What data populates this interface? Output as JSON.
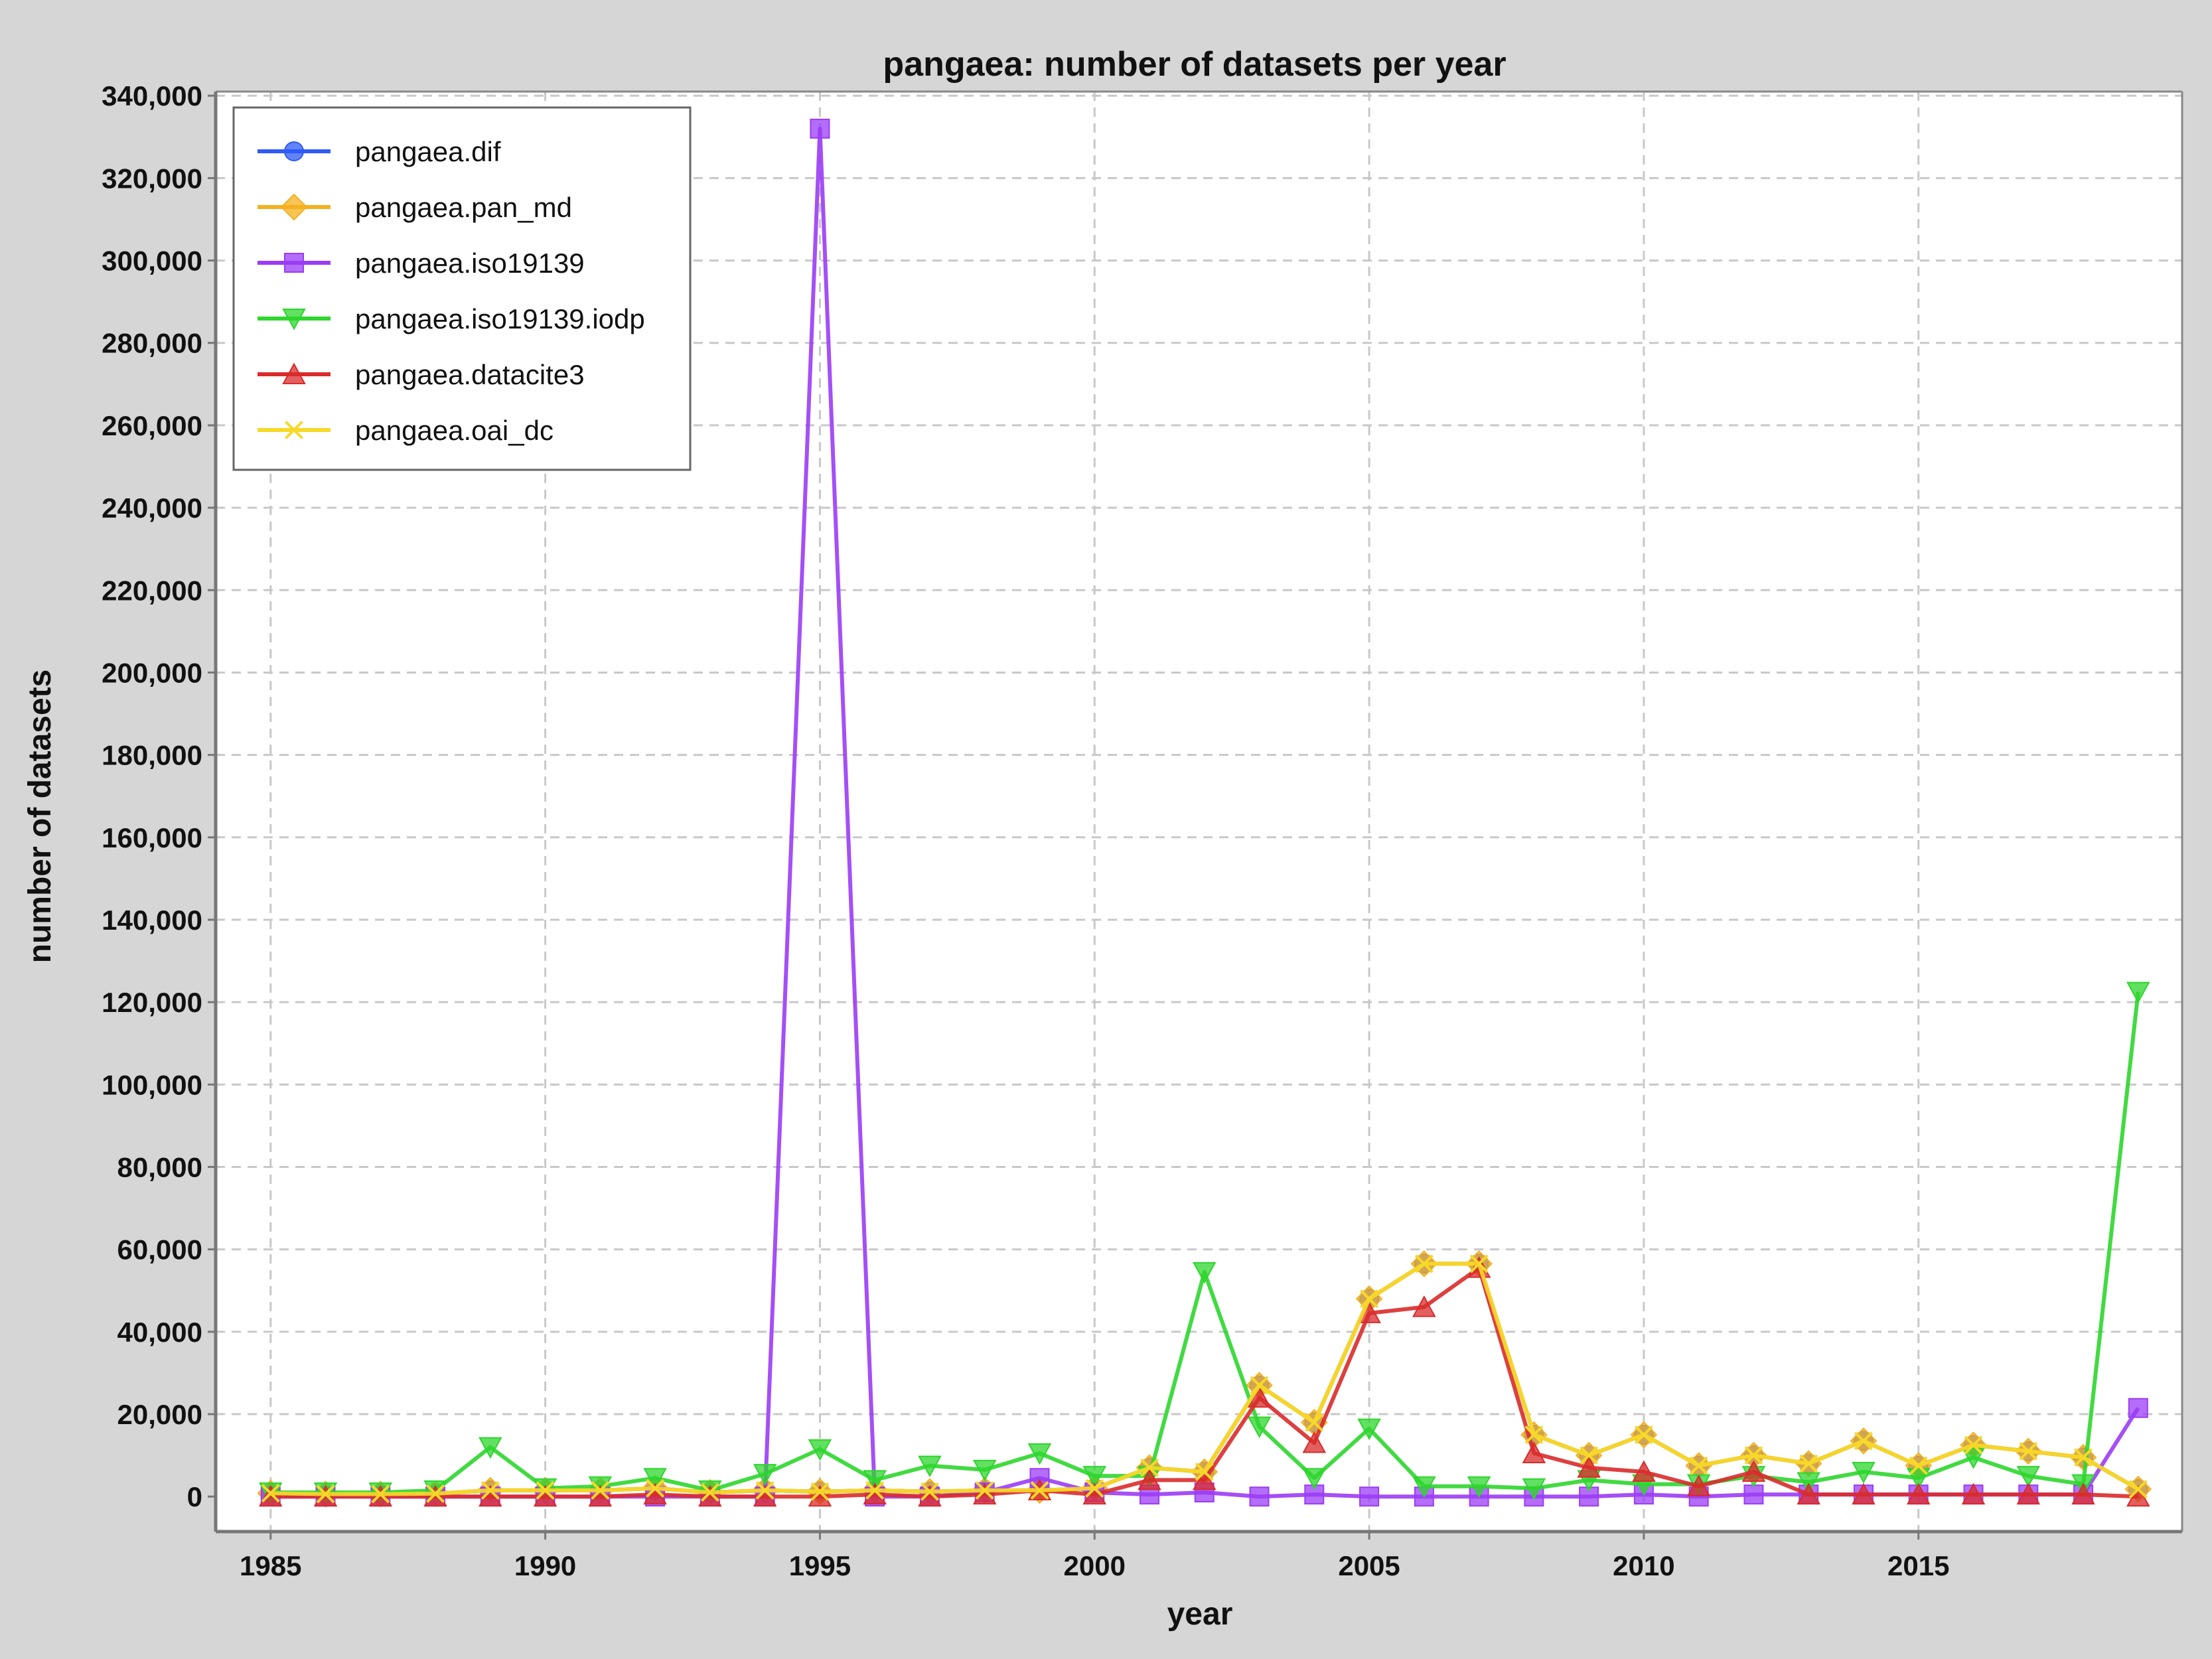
{
  "chart_data": {
    "type": "line",
    "title": "pangaea: number of datasets per year",
    "xlabel": "year",
    "ylabel": "number of datasets",
    "xlim": [
      1984,
      2019.8
    ],
    "ylim": [
      -8500,
      341000
    ],
    "x_ticks": [
      1985,
      1990,
      1995,
      2000,
      2005,
      2010,
      2015
    ],
    "y_ticks": [
      0,
      20000,
      40000,
      60000,
      80000,
      100000,
      120000,
      140000,
      160000,
      180000,
      200000,
      220000,
      240000,
      260000,
      280000,
      300000,
      320000,
      340000
    ],
    "y_tick_labels": [
      "0",
      "20,000",
      "40,000",
      "60,000",
      "80,000",
      "100,000",
      "120,000",
      "140,000",
      "160,000",
      "180,000",
      "200,000",
      "220,000",
      "240,000",
      "260,000",
      "280,000",
      "300,000",
      "320,000",
      "340,000"
    ],
    "grid": true,
    "legend_position": "top-left",
    "x": [
      1985,
      1986,
      1987,
      1988,
      1989,
      1990,
      1991,
      1992,
      1993,
      1994,
      1995,
      1996,
      1997,
      1998,
      1999,
      2000,
      2001,
      2002,
      2003,
      2004,
      2005,
      2006,
      2007,
      2008,
      2009,
      2010,
      2011,
      2012,
      2013,
      2014,
      2015,
      2016,
      2017,
      2018,
      2019
    ],
    "series": [
      {
        "name": "pangaea.dif",
        "color": "#2f5bf5",
        "marker": "circle",
        "values": [
          800,
          600,
          600,
          700,
          1500,
          1500,
          1500,
          2000,
          1000,
          1500,
          1200,
          1500,
          1200,
          1500,
          1500,
          2000,
          7000,
          6000,
          27000,
          18000,
          48000,
          56500,
          56500,
          15000,
          10000,
          15000,
          7500,
          10000,
          8000,
          13500,
          7500,
          12500,
          11000,
          9500,
          1800
        ]
      },
      {
        "name": "pangaea.pan_md",
        "color": "#f5b01e",
        "marker": "diamond",
        "values": [
          800,
          600,
          600,
          700,
          1500,
          1500,
          1500,
          2000,
          1000,
          1500,
          1200,
          1500,
          1200,
          1500,
          1500,
          2000,
          7000,
          6000,
          27000,
          18000,
          48000,
          56500,
          56500,
          15000,
          10000,
          15000,
          7500,
          10000,
          8000,
          13500,
          7500,
          12500,
          11000,
          9500,
          1800
        ]
      },
      {
        "name": "pangaea.iso19139",
        "color": "#9b3cf5",
        "marker": "square",
        "values": [
          0,
          0,
          0,
          0,
          0,
          0,
          0,
          0,
          0,
          0,
          332000,
          0,
          0,
          1000,
          4500,
          1000,
          500,
          1000,
          0,
          500,
          0,
          0,
          0,
          0,
          0,
          500,
          0,
          500,
          500,
          500,
          500,
          500,
          500,
          500,
          21500
        ]
      },
      {
        "name": "pangaea.iso19139.iodp",
        "color": "#2ed62e",
        "marker": "triangle-down",
        "values": [
          1000,
          1000,
          1000,
          1500,
          12000,
          2000,
          2500,
          4500,
          1500,
          5500,
          11500,
          4000,
          7500,
          6500,
          10500,
          5000,
          5000,
          54500,
          17000,
          4500,
          16500,
          2500,
          2500,
          2000,
          4000,
          3000,
          3000,
          5000,
          3500,
          6000,
          4500,
          9500,
          5000,
          3000,
          122500
        ]
      },
      {
        "name": "pangaea.datacite3",
        "color": "#d92b2b",
        "marker": "triangle-up",
        "values": [
          0,
          0,
          0,
          0,
          0,
          0,
          0,
          500,
          0,
          0,
          0,
          500,
          0,
          500,
          1500,
          500,
          4000,
          4000,
          24000,
          13000,
          44500,
          46000,
          55500,
          10500,
          7000,
          6000,
          2500,
          6000,
          500,
          500,
          500,
          500,
          500,
          500,
          0
        ]
      },
      {
        "name": "pangaea.oai_dc",
        "color": "#f7d92a",
        "marker": "x",
        "values": [
          800,
          600,
          600,
          700,
          1500,
          1500,
          1500,
          2000,
          1000,
          1500,
          1200,
          1500,
          1200,
          1500,
          1500,
          2000,
          7000,
          6000,
          27000,
          18000,
          48000,
          56500,
          56500,
          15000,
          10000,
          15000,
          7500,
          10000,
          8000,
          13500,
          7500,
          12500,
          11000,
          9500,
          1800
        ]
      }
    ]
  }
}
